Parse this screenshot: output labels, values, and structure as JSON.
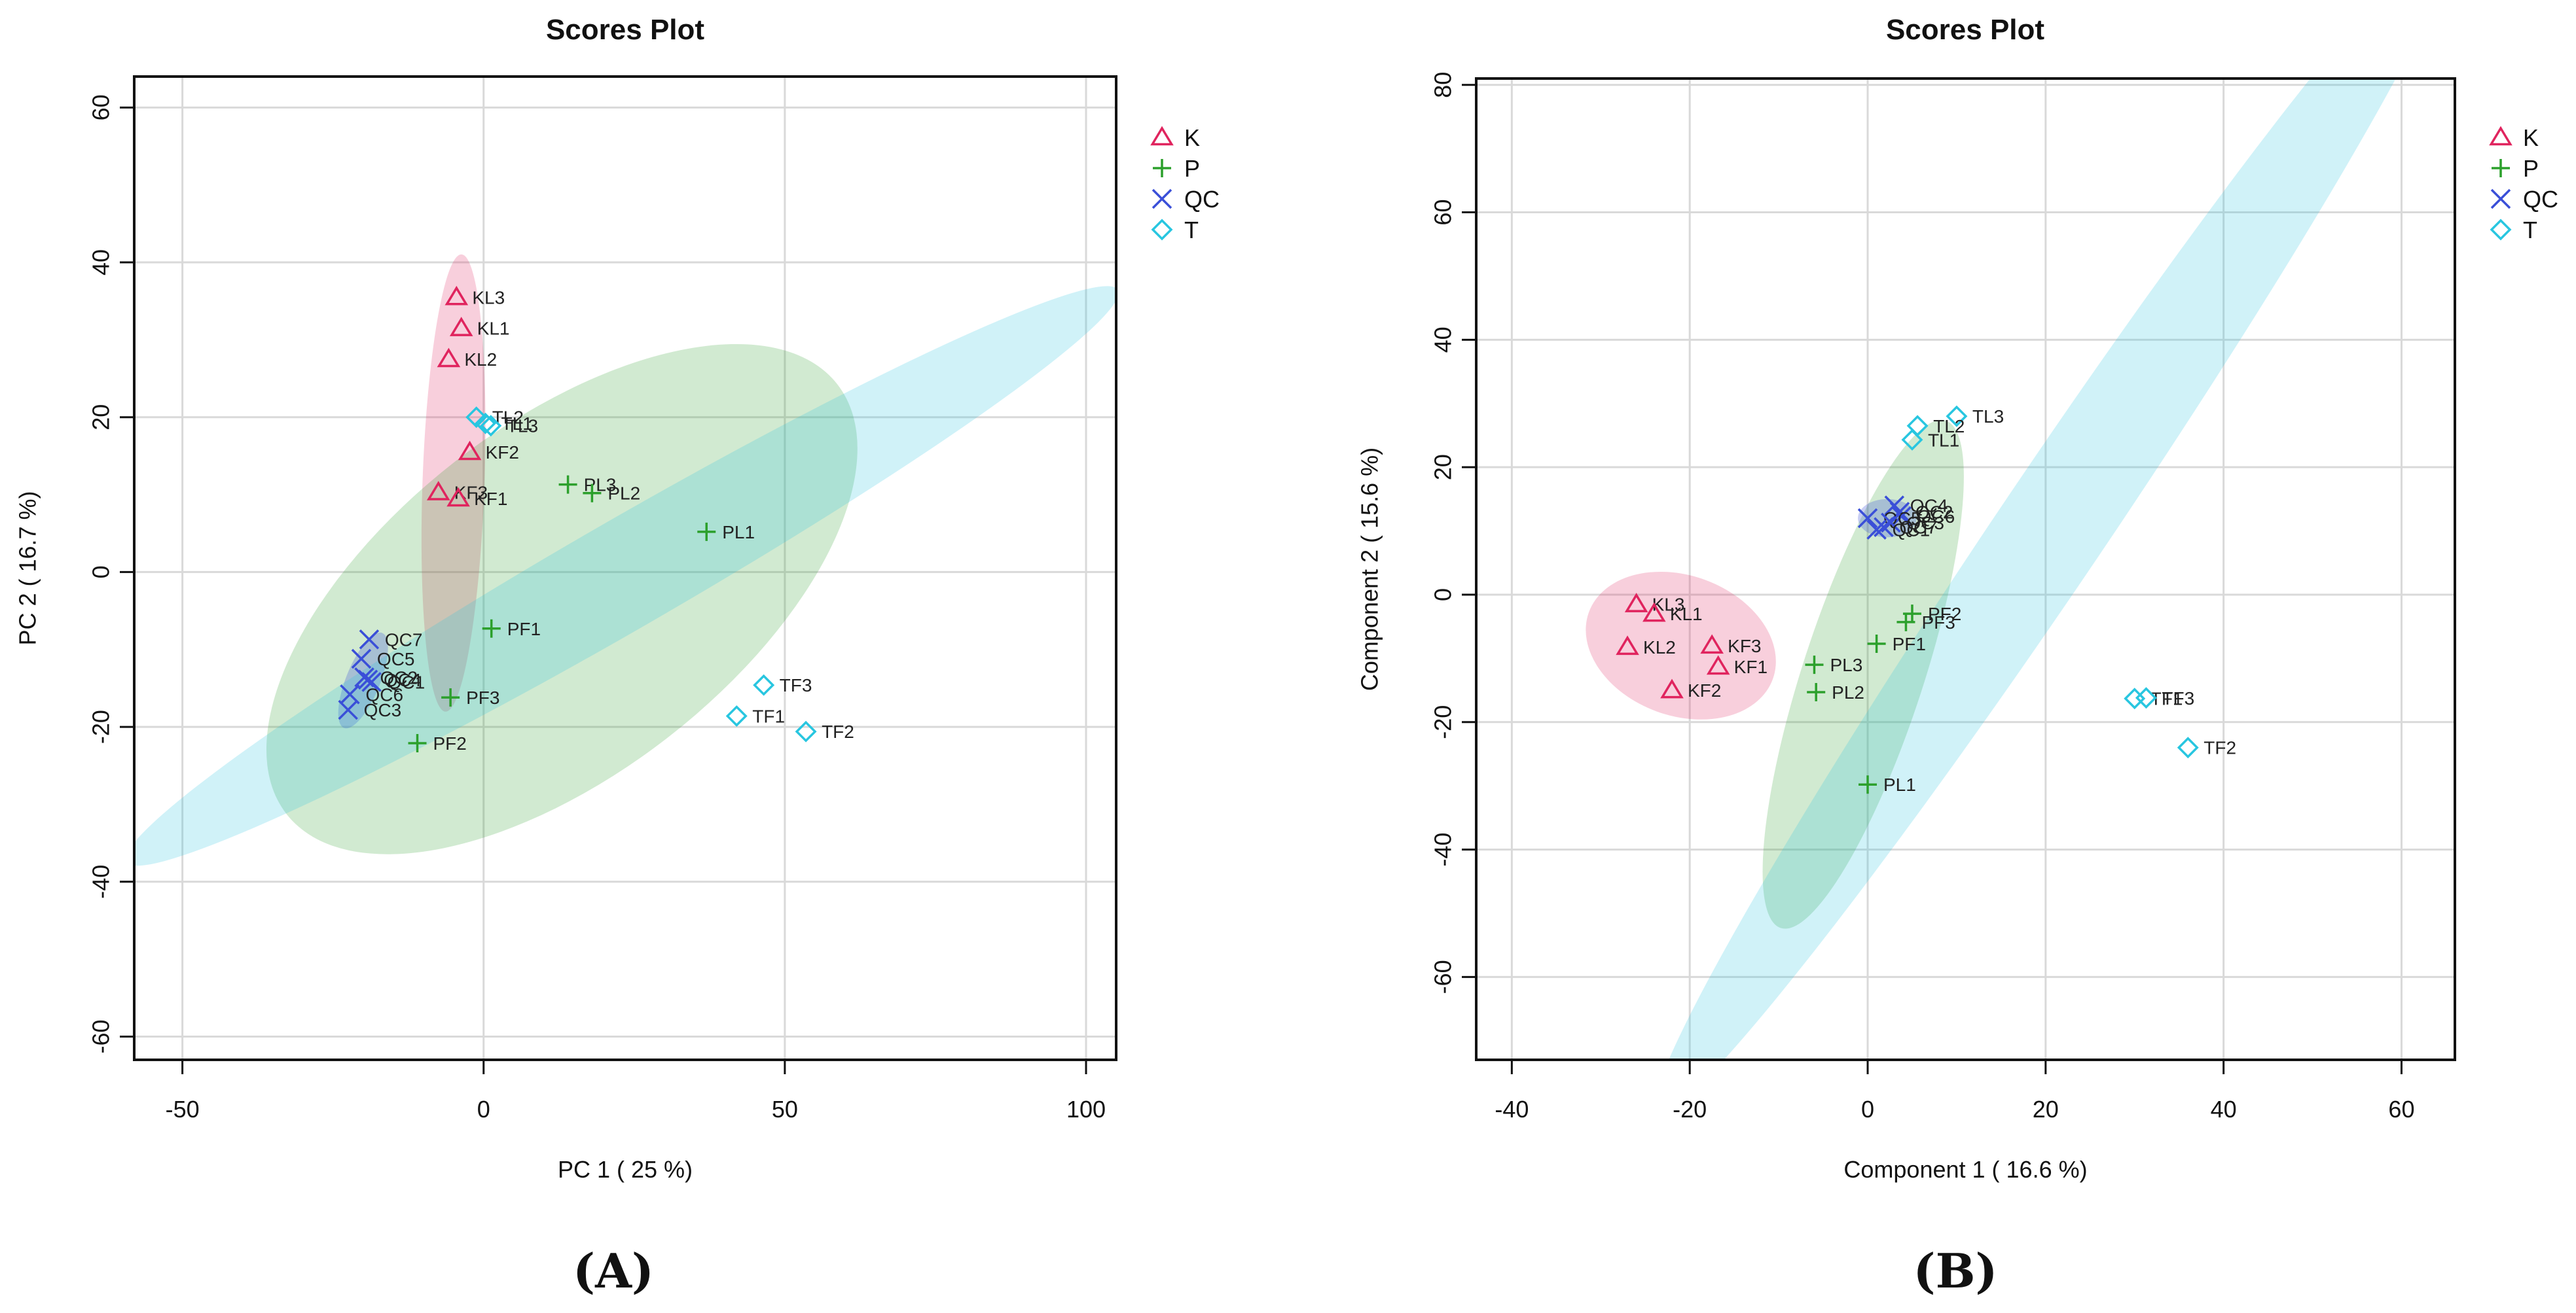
{
  "chart_data": [
    {
      "type": "scatter",
      "panel": "A",
      "title": "Scores Plot",
      "xlabel": "PC 1 ( 25 %)",
      "ylabel": "PC 2 ( 16.7 %)",
      "xlim": [
        -58,
        105
      ],
      "ylim": [
        -63,
        64
      ],
      "xticks": [
        -50,
        0,
        50,
        100
      ],
      "yticks": [
        -60,
        -40,
        -20,
        0,
        20,
        40,
        60
      ],
      "grid": true,
      "legend": "top-right",
      "series": [
        {
          "name": "K",
          "marker": "triangle",
          "color": "#e0245e",
          "ellipse": {
            "cx": -5,
            "cy": 11.5,
            "rx": 38,
            "ry": 4,
            "angle": 88
          },
          "points": [
            {
              "label": "KL3",
              "x": -4.5,
              "y": 35.5
            },
            {
              "label": "KL1",
              "x": -3.7,
              "y": 31.5
            },
            {
              "label": "KL2",
              "x": -5.8,
              "y": 27.5
            },
            {
              "label": "KF2",
              "x": -2.3,
              "y": 15.5
            },
            {
              "label": "KF3",
              "x": -7.5,
              "y": 10.3
            },
            {
              "label": "KF1",
              "x": -4.2,
              "y": 9.5
            }
          ]
        },
        {
          "name": "P",
          "marker": "plus",
          "color": "#2ca02c",
          "ellipse": {
            "cx": 13,
            "cy": -3.5,
            "rx": 58,
            "ry": 22.5,
            "angle": 38
          },
          "points": [
            {
              "label": "PL3",
              "x": 14,
              "y": 11.3
            },
            {
              "label": "PL2",
              "x": 18,
              "y": 10.2
            },
            {
              "label": "PL1",
              "x": 37,
              "y": 5.2
            },
            {
              "label": "PF1",
              "x": 1.3,
              "y": -7.3
            },
            {
              "label": "PF3",
              "x": -5.5,
              "y": -16.2
            },
            {
              "label": "PF2",
              "x": -11,
              "y": -22.1
            }
          ]
        },
        {
          "name": "QC",
          "marker": "x",
          "color": "#3a4fd8",
          "ellipse": {
            "cx": -20,
            "cy": -14,
            "rx": 8.5,
            "ry": 2.2,
            "angle": 68
          },
          "points": [
            {
              "label": "QC7",
              "x": -19,
              "y": -8.7
            },
            {
              "label": "QC5",
              "x": -20.3,
              "y": -11.2
            },
            {
              "label": "QC2",
              "x": -19.8,
              "y": -13.6
            },
            {
              "label": "QC4",
              "x": -19.2,
              "y": -13.9
            },
            {
              "label": "QC1",
              "x": -18.6,
              "y": -14.2
            },
            {
              "label": "QC6",
              "x": -22.2,
              "y": -15.8
            },
            {
              "label": "QC3",
              "x": -22.5,
              "y": -17.8
            }
          ]
        },
        {
          "name": "T",
          "marker": "diamond",
          "color": "#28c6e0",
          "ellipse": {
            "cx": 23,
            "cy": -0.5,
            "rx": 95,
            "ry": 7,
            "angle": 30
          },
          "points": [
            {
              "label": "TL2",
              "x": -1.2,
              "y": 20
            },
            {
              "label": "TL1",
              "x": 0.3,
              "y": 19.2
            },
            {
              "label": "TL3",
              "x": 1.2,
              "y": 18.9
            },
            {
              "label": "TF3",
              "x": 46.5,
              "y": -14.6
            },
            {
              "label": "TF1",
              "x": 42,
              "y": -18.6
            },
            {
              "label": "TF2",
              "x": 53.5,
              "y": -20.6
            }
          ]
        }
      ]
    },
    {
      "type": "scatter",
      "panel": "B",
      "title": "Scores Plot",
      "xlabel": "Component 1 ( 16.6 %)",
      "ylabel": "Component 2 ( 15.6 %)",
      "xlim": [
        -44,
        66
      ],
      "ylim": [
        -73,
        81
      ],
      "xticks": [
        -40,
        -20,
        0,
        20,
        40,
        60
      ],
      "yticks": [
        -60,
        -40,
        -20,
        0,
        20,
        40,
        60,
        80
      ],
      "grid": true,
      "legend": "top-right",
      "series": [
        {
          "name": "K",
          "marker": "triangle",
          "color": "#e0245e",
          "ellipse": {
            "cx": -21,
            "cy": -8,
            "rx": 11,
            "ry": 11,
            "angle": -20
          },
          "points": [
            {
              "label": "KL3",
              "x": -26,
              "y": -1.5
            },
            {
              "label": "KL1",
              "x": -24,
              "y": -3
            },
            {
              "label": "KL2",
              "x": -27,
              "y": -8.2
            },
            {
              "label": "KF3",
              "x": -17.5,
              "y": -8
            },
            {
              "label": "KF1",
              "x": -16.8,
              "y": -11.3
            },
            {
              "label": "KF2",
              "x": -22,
              "y": -15
            }
          ]
        },
        {
          "name": "P",
          "marker": "plus",
          "color": "#2ca02c",
          "ellipse": {
            "cx": -0.5,
            "cy": -12.5,
            "rx": 30,
            "ry": 9.5,
            "angle": 72
          },
          "points": [
            {
              "label": "PF2",
              "x": 5,
              "y": -3
            },
            {
              "label": "PF3",
              "x": 4.3,
              "y": -4.3
            },
            {
              "label": "PF1",
              "x": 1,
              "y": -7.7
            },
            {
              "label": "PL3",
              "x": -6,
              "y": -11
            },
            {
              "label": "PL2",
              "x": -5.8,
              "y": -15.3
            },
            {
              "label": "PL1",
              "x": 0,
              "y": -29.8
            }
          ]
        },
        {
          "name": "QC",
          "marker": "x",
          "color": "#3a4fd8",
          "ellipse": {
            "cx": 2.2,
            "cy": 12,
            "rx": 3.3,
            "ry": 3,
            "angle": 0
          },
          "points": [
            {
              "label": "QC4",
              "x": 3,
              "y": 14
            },
            {
              "label": "QC2",
              "x": 3.6,
              "y": 13
            },
            {
              "label": "QC6",
              "x": 3.8,
              "y": 12.3
            },
            {
              "label": "QC5",
              "x": 0,
              "y": 12
            },
            {
              "label": "QC3",
              "x": 2.6,
              "y": 11.3
            },
            {
              "label": "QC7",
              "x": 1.8,
              "y": 10.6
            },
            {
              "label": "QC1",
              "x": 1,
              "y": 10.2
            }
          ]
        },
        {
          "name": "T",
          "marker": "diamond",
          "color": "#28c6e0",
          "ellipse": {
            "cx": 21,
            "cy": 11,
            "rx": 80,
            "ry": 8.5,
            "angle": 56
          },
          "points": [
            {
              "label": "TL3",
              "x": 10,
              "y": 28
            },
            {
              "label": "TL2",
              "x": 5.6,
              "y": 26.5
            },
            {
              "label": "TL1",
              "x": 5,
              "y": 24.3
            },
            {
              "label": "TF1",
              "x": 30,
              "y": -16.3
            },
            {
              "label": "TF3",
              "x": 31.3,
              "y": -16.2
            },
            {
              "label": "TF2",
              "x": 36,
              "y": -24
            }
          ]
        }
      ]
    }
  ],
  "captions": {
    "a": "(A)",
    "b": "(B)"
  }
}
